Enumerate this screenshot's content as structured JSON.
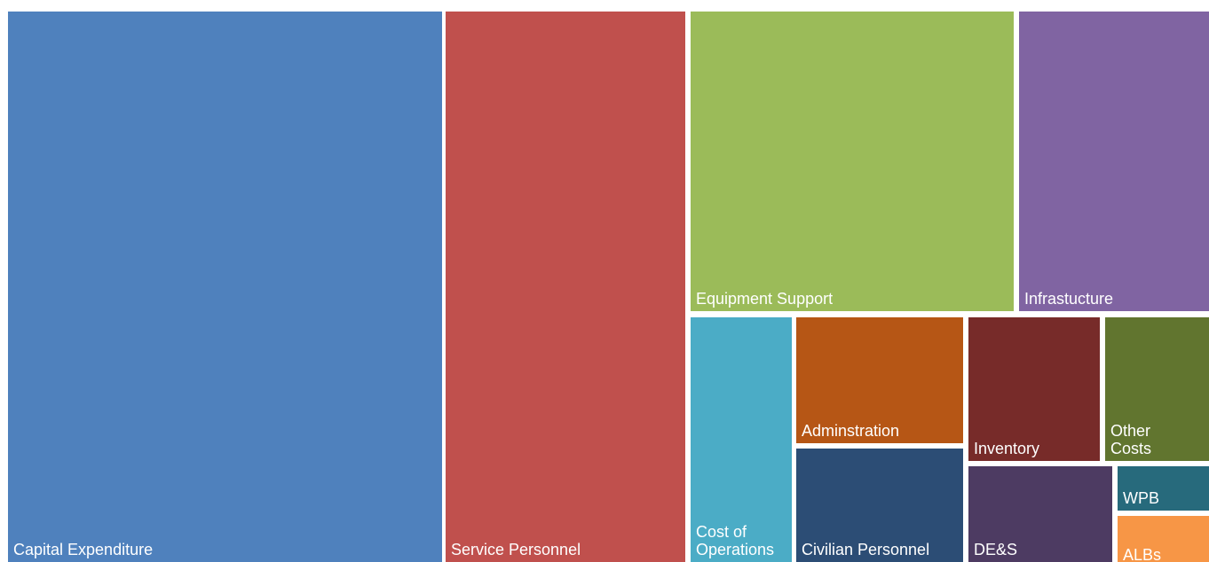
{
  "chart_data": {
    "type": "treemap",
    "title": "",
    "items": [
      {
        "name": "Capital Expenditure",
        "color": "#4F81BD"
      },
      {
        "name": "Service Personnel",
        "color": "#C0504D"
      },
      {
        "name": "Equipment Support",
        "color": "#9BBB59"
      },
      {
        "name": "Infrastucture",
        "color": "#8064A2"
      },
      {
        "name": "Cost of\nOperations",
        "color": "#4BACC6"
      },
      {
        "name": "Adminstration",
        "color": "#B65615"
      },
      {
        "name": "Civilian Personnel",
        "color": "#2C4D75"
      },
      {
        "name": "Inventory",
        "color": "#772B29"
      },
      {
        "name": "Other\nCosts",
        "color": "#61752F"
      },
      {
        "name": "DE&S",
        "color": "#4D3B62"
      },
      {
        "name": "WPB",
        "color": "#276A7C"
      },
      {
        "name": "ALBs",
        "color": "#F79646"
      }
    ]
  }
}
